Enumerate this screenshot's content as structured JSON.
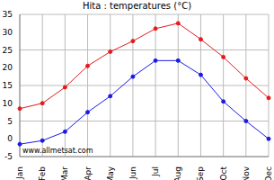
{
  "chart_data": {
    "type": "line",
    "title": "Hita : temperatures (°C)",
    "annotation": "www.allmetsat.com",
    "categories": [
      "Jan",
      "Feb",
      "Mar",
      "Apr",
      "May",
      "Jun",
      "Jul",
      "Aug",
      "Sep",
      "Oct",
      "Nov",
      "Dec"
    ],
    "series": [
      {
        "color": "#e41a1c",
        "marker": "circle",
        "values": [
          8.5,
          10,
          14.5,
          20.5,
          24.5,
          27.5,
          31,
          32.5,
          28,
          23,
          17,
          11.5
        ]
      },
      {
        "color": "#1a1ae4",
        "marker": "circle",
        "values": [
          -1.5,
          -0.5,
          2,
          7.5,
          12,
          17.5,
          22,
          22,
          18,
          10.5,
          5,
          0
        ]
      }
    ],
    "ylim": [
      -5,
      35
    ],
    "yticks": [
      -5,
      0,
      5,
      10,
      15,
      20,
      25,
      30,
      35
    ],
    "grid": true
  }
}
